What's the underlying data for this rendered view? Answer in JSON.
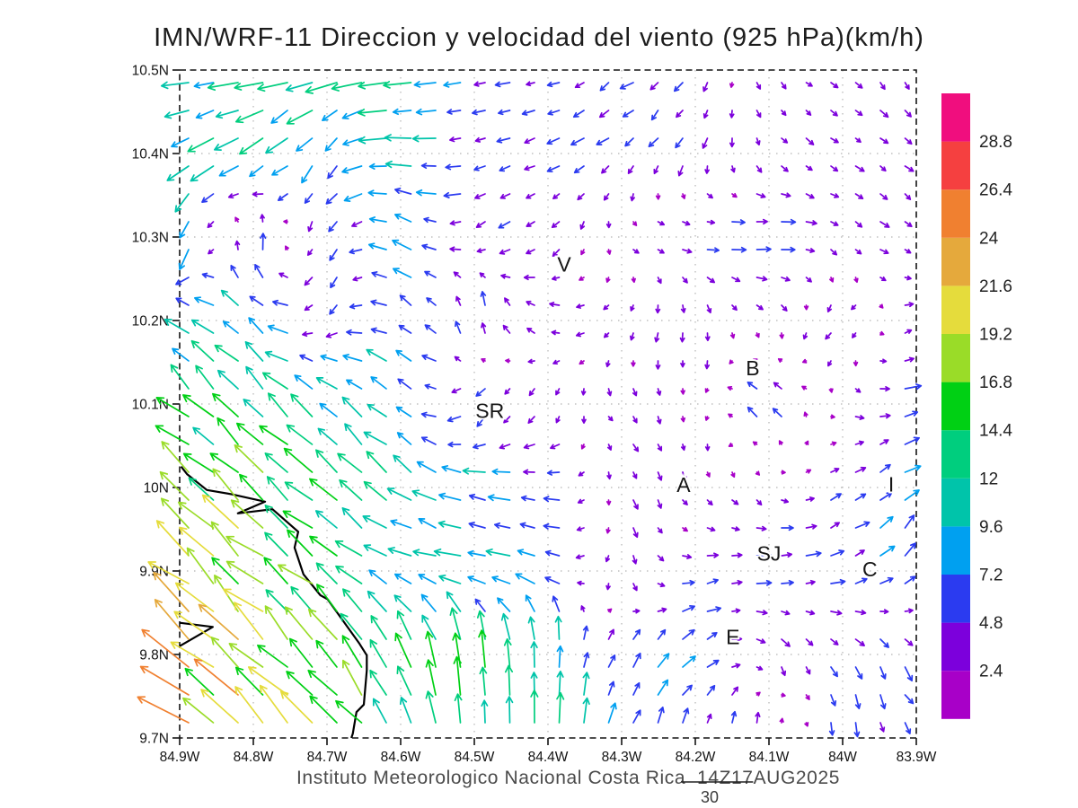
{
  "title": "IMN/WRF-11 Direccion y velocidad del viento (925 hPa)(km/h)",
  "credit": "Instituto Meteorologico Nacional Costa Rica  14Z17AUG2025",
  "chart_data": {
    "type": "vector_field",
    "variable": "wind direction and velocity",
    "level": "925 hPa",
    "units": "km/h",
    "x_axis": {
      "range": [
        84.9,
        83.9
      ],
      "ticks": [
        "84.9W",
        "84.8W",
        "84.7W",
        "84.6W",
        "84.5W",
        "84.4W",
        "84.3W",
        "84.2W",
        "84.1W",
        "84W",
        "83.9W"
      ]
    },
    "y_axis": {
      "range": [
        10.5,
        9.7
      ],
      "ticks": [
        "10.5N",
        "10.4N",
        "10.3N",
        "10.2N",
        "10.1N",
        "10N",
        "9.9N",
        "9.8N",
        "9.7N"
      ]
    },
    "grid": "dotted 0.1 degree",
    "colorbar": {
      "levels": [
        2.4,
        4.8,
        7.2,
        9.6,
        12,
        14.4,
        16.8,
        19.2,
        21.6,
        24,
        26.4,
        28.8
      ],
      "labels": [
        "2.4",
        "4.8",
        "7.2",
        "9.6",
        "12",
        "14.4",
        "16.8",
        "19.2",
        "21.6",
        "24",
        "26.4",
        "28.8"
      ],
      "colors": [
        "#A800C8",
        "#7C00DC",
        "#2B3BF0",
        "#00A0F0",
        "#00C4AA",
        "#00CE7E",
        "#00D014",
        "#9ADC28",
        "#E5DC3C",
        "#E5A93C",
        "#F08030",
        "#F54040",
        "#F00E7E"
      ]
    },
    "reference_vector": {
      "value": 30,
      "label": "30"
    },
    "stations": [
      {
        "label": "V",
        "lon": 84.378,
        "lat": 10.267
      },
      {
        "label": "B",
        "lon": 84.122,
        "lat": 10.143
      },
      {
        "label": "SR",
        "lon": 84.479,
        "lat": 10.092
      },
      {
        "label": "A",
        "lon": 84.216,
        "lat": 10.003
      },
      {
        "label": "I",
        "lon": 83.934,
        "lat": 10.004
      },
      {
        "label": "SJ",
        "lon": 84.1,
        "lat": 9.921
      },
      {
        "label": "C",
        "lon": 83.963,
        "lat": 9.902
      },
      {
        "label": "E",
        "lon": 84.149,
        "lat": 9.821
      }
    ],
    "coastline": [
      [
        84.898,
        10.025
      ],
      [
        84.89,
        10.016
      ],
      [
        84.863,
        9.997
      ],
      [
        84.83,
        9.992
      ],
      [
        84.784,
        9.983
      ],
      [
        84.821,
        9.969
      ],
      [
        84.774,
        9.974
      ],
      [
        84.739,
        9.947
      ],
      [
        84.744,
        9.928
      ],
      [
        84.732,
        9.896
      ],
      [
        84.709,
        9.871
      ],
      [
        84.699,
        9.866
      ],
      [
        84.656,
        9.813
      ],
      [
        84.646,
        9.799
      ],
      [
        84.646,
        9.781
      ],
      [
        84.65,
        9.74
      ],
      [
        84.66,
        9.731
      ],
      [
        84.665,
        9.705
      ],
      [
        84.667,
        9.7
      ]
    ],
    "peninsula": [
      [
        84.9,
        9.838
      ],
      [
        84.855,
        9.833
      ],
      [
        84.9,
        9.81
      ]
    ],
    "wind_grid": {
      "note": "u,v in km/h estimated at 0.1 deg gridline intersections; east/north positive",
      "lons": [
        84.9,
        84.8,
        84.7,
        84.6,
        84.5,
        84.4,
        84.3,
        84.2,
        84.1,
        84.0,
        83.9
      ],
      "lats": [
        10.5,
        10.4,
        10.3,
        10.2,
        10.1,
        10.0,
        9.9,
        9.8,
        9.7
      ],
      "u_kmh": [
        [
          -10,
          -12,
          -12,
          -10,
          -6,
          -4,
          -5,
          -3,
          2,
          3,
          2
        ],
        [
          -9,
          -9,
          -4,
          -11,
          -5,
          -5,
          -4,
          -2,
          2,
          3,
          3
        ],
        [
          -4,
          2,
          -2,
          -7,
          -5,
          -3,
          2,
          5,
          6,
          4,
          3
        ],
        [
          -8,
          -8,
          -4,
          -7,
          0,
          -5,
          -2,
          0,
          2,
          -4,
          4
        ],
        [
          -11,
          -10,
          -8,
          -7,
          -4,
          -1,
          2,
          0,
          -5,
          2,
          7
        ],
        [
          -12,
          -12,
          -10,
          -8,
          -9,
          -7,
          2,
          1,
          2,
          4,
          6
        ],
        [
          -14,
          -13,
          -11,
          -10,
          -10,
          -7,
          0,
          5,
          6,
          5,
          5
        ],
        [
          -16,
          -15,
          -12,
          -6,
          -2,
          0,
          4,
          5,
          2,
          3,
          3
        ],
        [
          -19,
          -17,
          -14,
          -5,
          0,
          0,
          3,
          1,
          0,
          0,
          3
        ]
      ],
      "v_kmh": [
        [
          -1,
          -2,
          -3,
          -2,
          -1,
          -1,
          -3,
          -3,
          -2,
          -2,
          -3
        ],
        [
          -5,
          -6,
          -7,
          1,
          -1,
          -2,
          -3,
          -4,
          -3,
          -2,
          -2
        ],
        [
          -12,
          8,
          -6,
          4,
          -2,
          -3,
          -2,
          0,
          1,
          -2,
          -2
        ],
        [
          5,
          6,
          -4,
          3,
          7,
          2,
          -3,
          -4,
          -3,
          -3,
          2
        ],
        [
          9,
          9,
          7,
          6,
          -5,
          -4,
          -2,
          -3,
          6,
          -2,
          2
        ],
        [
          11,
          11,
          9,
          7,
          2,
          1,
          -3,
          -3,
          -2,
          3,
          4
        ],
        [
          13,
          12,
          10,
          2,
          1,
          3,
          -5,
          1,
          1,
          2,
          6
        ],
        [
          14,
          13,
          11,
          12,
          13,
          10,
          5,
          4,
          -4,
          -4,
          -5
        ],
        [
          15,
          14,
          12,
          14,
          14,
          11,
          7,
          5,
          6,
          -7,
          -4
        ]
      ]
    }
  }
}
